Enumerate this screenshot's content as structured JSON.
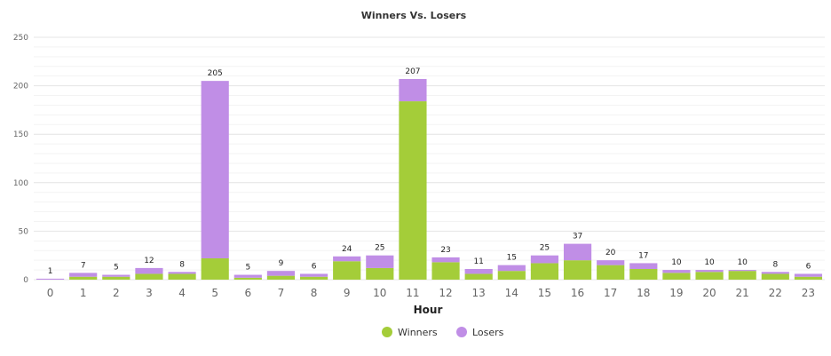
{
  "chart_data": {
    "type": "bar",
    "stacked": true,
    "title": "Winners Vs. Losers",
    "xlabel": "Hour",
    "ylabel": "",
    "ylim": [
      0,
      250
    ],
    "yticks": [
      0,
      50,
      100,
      150,
      200,
      250
    ],
    "grid": true,
    "legend_position": "bottom",
    "categories": [
      "0",
      "1",
      "2",
      "3",
      "4",
      "5",
      "6",
      "7",
      "8",
      "9",
      "10",
      "11",
      "12",
      "13",
      "14",
      "15",
      "16",
      "17",
      "18",
      "19",
      "20",
      "21",
      "22",
      "23"
    ],
    "series": [
      {
        "name": "Winners",
        "color": "#a4cd39",
        "values": [
          0,
          3,
          3,
          6,
          6,
          22,
          2,
          4,
          3,
          19,
          12,
          184,
          18,
          6,
          9,
          17,
          20,
          15,
          11,
          7,
          8,
          9,
          6,
          3
        ]
      },
      {
        "name": "Losers",
        "color": "#c08ee6",
        "values": [
          1,
          4,
          2,
          6,
          2,
          183,
          3,
          5,
          3,
          5,
          13,
          23,
          5,
          5,
          6,
          8,
          17,
          5,
          6,
          3,
          2,
          1,
          2,
          3
        ]
      }
    ],
    "totals": [
      1,
      7,
      5,
      12,
      8,
      205,
      5,
      9,
      6,
      24,
      25,
      207,
      23,
      11,
      15,
      25,
      37,
      20,
      17,
      10,
      10,
      10,
      8,
      6
    ]
  }
}
